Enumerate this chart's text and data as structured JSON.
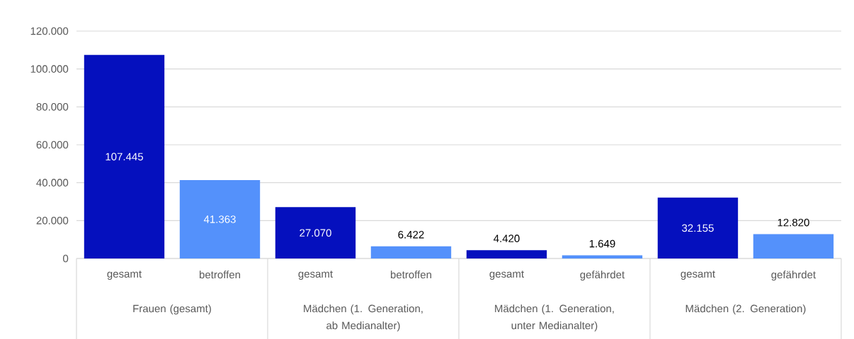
{
  "chart_data": {
    "type": "bar",
    "categories": [
      "gesamt",
      "betroffen",
      "gesamt",
      "betroffen",
      "gesamt",
      "gefährdet",
      "gesamt",
      "gefährdet"
    ],
    "values": [
      107445,
      41363,
      27070,
      6422,
      4420,
      1649,
      32155,
      12820
    ],
    "colors": [
      "#0510be",
      "#5491fb",
      "#0510be",
      "#5491fb",
      "#0510be",
      "#5491fb",
      "#0510be",
      "#5491fb"
    ],
    "value_labels": [
      "107.445",
      "41.363",
      "27.070",
      "6.422",
      "4.420",
      "1.649",
      "32.155",
      "12.820"
    ],
    "annotations": [
      "Frauen (gesamt)",
      "Mädchen (1. Generation, ab Medianalter)",
      "Mädchen (1. Generation, unter Medianalter)",
      "Mädchen (2. Generation)"
    ],
    "ylim": [
      0,
      120000
    ],
    "yticks": [
      {
        "value": 0,
        "label": "0"
      },
      {
        "value": 20000,
        "label": "20.000"
      },
      {
        "value": 40000,
        "label": "40.000"
      },
      {
        "value": 60000,
        "label": "60.000"
      },
      {
        "value": 80000,
        "label": "80.000"
      },
      {
        "value": 100000,
        "label": "100.000"
      },
      {
        "value": 120000,
        "label": "120.000"
      }
    ],
    "grid": "y"
  }
}
